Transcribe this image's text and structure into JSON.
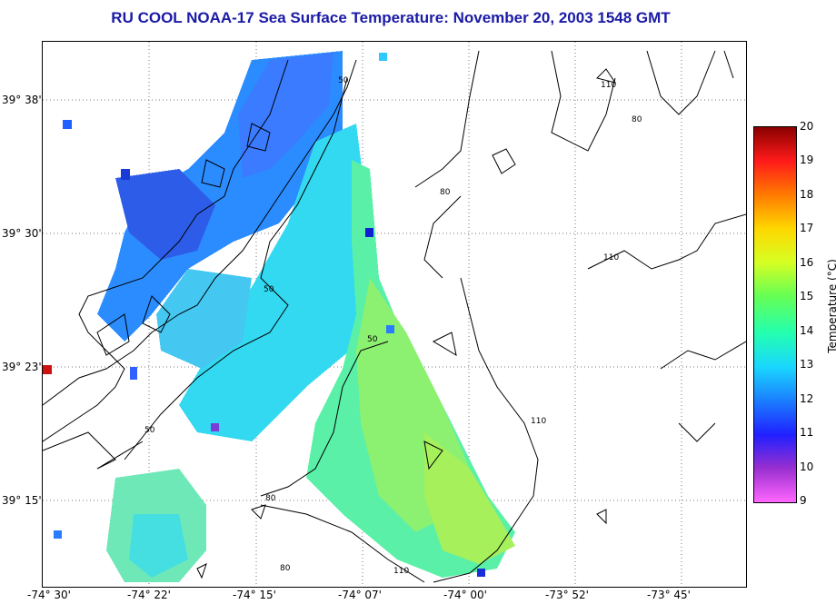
{
  "title": "RU COOL  NOAA-17  Sea Surface Temperature:  November 20, 2003 1548 GMT",
  "latitude_labels": [
    "39° 38'",
    "39° 30'",
    "39° 23'",
    "39° 15'"
  ],
  "longitude_labels": [
    "-74° 30'",
    "-74° 22'",
    "-74° 15'",
    "-74° 07'",
    "-74° 00'",
    "-73° 52'",
    "-73° 45'"
  ],
  "contour_labels": [
    "50",
    "50",
    "50",
    "50",
    "80",
    "80",
    "80",
    "110",
    "110",
    "110",
    "110",
    "80"
  ],
  "colorbar": {
    "title": "Temperature (°C)",
    "ticks": [
      "20",
      "19",
      "18",
      "17",
      "16",
      "15",
      "14",
      "13",
      "12",
      "11",
      "10",
      "9"
    ],
    "min": 9,
    "max": 20
  }
}
